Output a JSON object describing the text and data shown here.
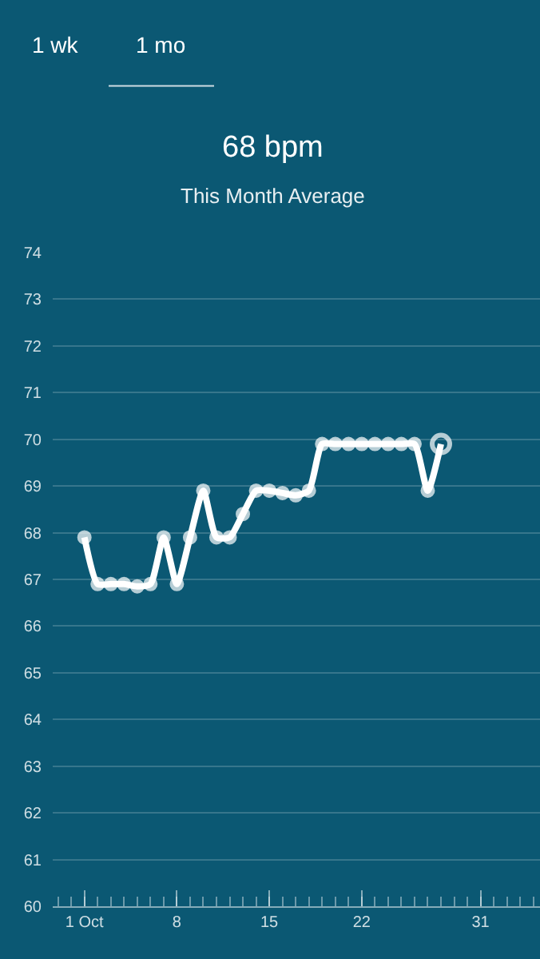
{
  "chart_data": {
    "type": "line",
    "title": "68 bpm",
    "subtitle": "This Month Average",
    "annotations": [
      "1 wk",
      "1 mo"
    ],
    "x": [
      1,
      2,
      3,
      4,
      5,
      6,
      7,
      8,
      9,
      10,
      11,
      12,
      13,
      14,
      15,
      16,
      17,
      18,
      19,
      20,
      21,
      22,
      23,
      24,
      25,
      26,
      27,
      28
    ],
    "series": [
      {
        "color": "#ffffff",
        "values": [
          67.9,
          66.9,
          66.9,
          66.9,
          66.85,
          66.9,
          67.9,
          66.9,
          67.9,
          68.9,
          67.9,
          67.9,
          68.4,
          68.9,
          68.9,
          68.85,
          68.8,
          68.9,
          69.9,
          69.9,
          69.9,
          69.9,
          69.9,
          69.9,
          69.9,
          69.9,
          68.9,
          69.9
        ]
      }
    ],
    "xlim": [
      -1.4,
      35.5
    ],
    "ylim": [
      60,
      74
    ],
    "xticks": [
      {
        "value": 1,
        "label": "1 Oct"
      },
      8,
      15,
      22,
      31
    ],
    "yticks": [
      60,
      61,
      62,
      63,
      64,
      65,
      66,
      67,
      68,
      69,
      70,
      71,
      72,
      73,
      74
    ],
    "grid": "y",
    "marker": "circle",
    "line_style": "solid"
  }
}
